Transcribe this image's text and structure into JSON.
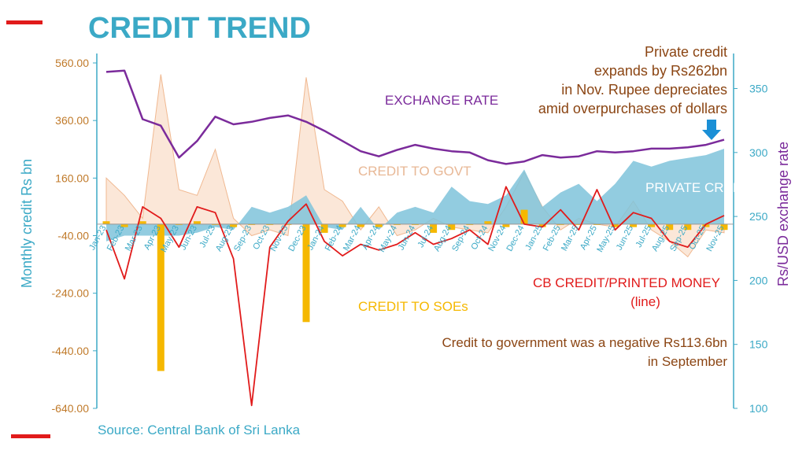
{
  "title": "CREDIT TREND",
  "source": "Source: Central Bank of Sri Lanka",
  "annotations": {
    "private_credit": [
      "Private credit",
      "expands by Rs262bn",
      "in Nov. Rupee depreciates",
      "amid overpurchases of dollars"
    ],
    "govt_credit": [
      "Credit to government was a negative Rs113.6bn",
      "in September"
    ]
  },
  "series_labels": {
    "exchange_rate": "EXCHANGE RATE",
    "credit_to_govt": "CREDIT TO GOVT",
    "private_credit": "PRIVATE CRED",
    "cb_credit": "CB CREDIT/PRINTED MONEY",
    "cb_credit_sub": "(line)",
    "credit_to_soes": "CREDIT TO SOEs"
  },
  "colors": {
    "title": "#3ba9c6",
    "exchange_rate": "#7b2b9b",
    "credit_to_govt": "#f6c9a8",
    "private_credit": "#7fc3da",
    "cb_credit": "#e11b1b",
    "credit_to_soes": "#f5b800",
    "annotation": "#8b4513",
    "left_axis": "#c07a2a",
    "right_axis": "#3ba9c6",
    "arrow": "#1a8fd6"
  },
  "chart_data": {
    "type": "line",
    "x": [
      "Jan-23",
      "Feb-23",
      "Mar-23",
      "Apr-23",
      "May-23",
      "Jun-23",
      "Jul-23",
      "Aug-23",
      "Sep-23",
      "Oct-23",
      "Nov-23",
      "Dec-23",
      "Jan-24",
      "Feb-24",
      "Mar-24",
      "Apr-24",
      "May-24",
      "Jun-24",
      "Jul-24",
      "Aug-24",
      "Sep-24",
      "Oct-24",
      "Nov-24",
      "Dec-24",
      "Jan-25",
      "Feb-25",
      "Mar-25",
      "Apr-25",
      "May-25",
      "Jun-25",
      "Jul-25",
      "Aug-25",
      "Sep-25",
      "Oct-25",
      "Nov-25"
    ],
    "y_left": {
      "label": "Monthly credit Rs bn",
      "range": [
        -640,
        560
      ],
      "ticks": [
        "560.00",
        "360.00",
        "160.00",
        "-40.00",
        "-240.00",
        "-440.00",
        "-640.00"
      ]
    },
    "y_right": {
      "label": "Rs/USD exchange rate",
      "range": [
        100,
        370
      ],
      "ticks": [
        "350",
        "300",
        "250",
        "200",
        "150",
        "100"
      ]
    },
    "series": [
      {
        "name": "CREDIT TO GOVT",
        "axis": "left",
        "style": "area",
        "values": [
          160,
          100,
          20,
          520,
          120,
          100,
          260,
          20,
          -40,
          -20,
          -40,
          510,
          120,
          80,
          -20,
          60,
          -40,
          -20,
          20,
          -10,
          -20,
          -30,
          60,
          180,
          60,
          -20,
          20,
          0,
          -10,
          80,
          -20,
          -60,
          -113.6,
          -20,
          -30
        ]
      },
      {
        "name": "PRIVATE CRED",
        "axis": "left",
        "style": "area",
        "values": [
          -60,
          -40,
          -40,
          -40,
          -40,
          -30,
          -10,
          -20,
          60,
          40,
          60,
          100,
          -10,
          -20,
          60,
          -20,
          40,
          60,
          40,
          130,
          80,
          70,
          100,
          190,
          60,
          110,
          140,
          80,
          140,
          220,
          200,
          220,
          230,
          240,
          262
        ]
      },
      {
        "name": "CREDIT TO SOEs",
        "axis": "left",
        "style": "bar",
        "values": [
          10,
          -10,
          10,
          -510,
          0,
          10,
          0,
          -10,
          0,
          0,
          0,
          -340,
          -30,
          -10,
          -10,
          -10,
          0,
          0,
          -30,
          -20,
          0,
          10,
          -10,
          50,
          -10,
          0,
          0,
          0,
          -10,
          -10,
          -10,
          -20,
          -20,
          -10,
          -20
        ]
      },
      {
        "name": "CB CREDIT/PRINTED MONEY",
        "axis": "left",
        "style": "line",
        "values": [
          -20,
          -190,
          60,
          20,
          -80,
          60,
          40,
          -120,
          -630,
          -80,
          10,
          70,
          -60,
          -110,
          -70,
          -90,
          -70,
          -30,
          -70,
          -50,
          -20,
          -70,
          130,
          0,
          -10,
          50,
          -20,
          120,
          -20,
          40,
          20,
          -60,
          -80,
          0,
          30
        ]
      },
      {
        "name": "EXCHANGE RATE",
        "axis": "right",
        "style": "line",
        "values": [
          363,
          364,
          326,
          321,
          296,
          309,
          328,
          322,
          324,
          327,
          329,
          324,
          317,
          309,
          301,
          297,
          302,
          306,
          303,
          301,
          300,
          294,
          291,
          293,
          298,
          296,
          297,
          301,
          300,
          301,
          303,
          303,
          304,
          306,
          310
        ]
      }
    ],
    "legend": "inline labels"
  }
}
